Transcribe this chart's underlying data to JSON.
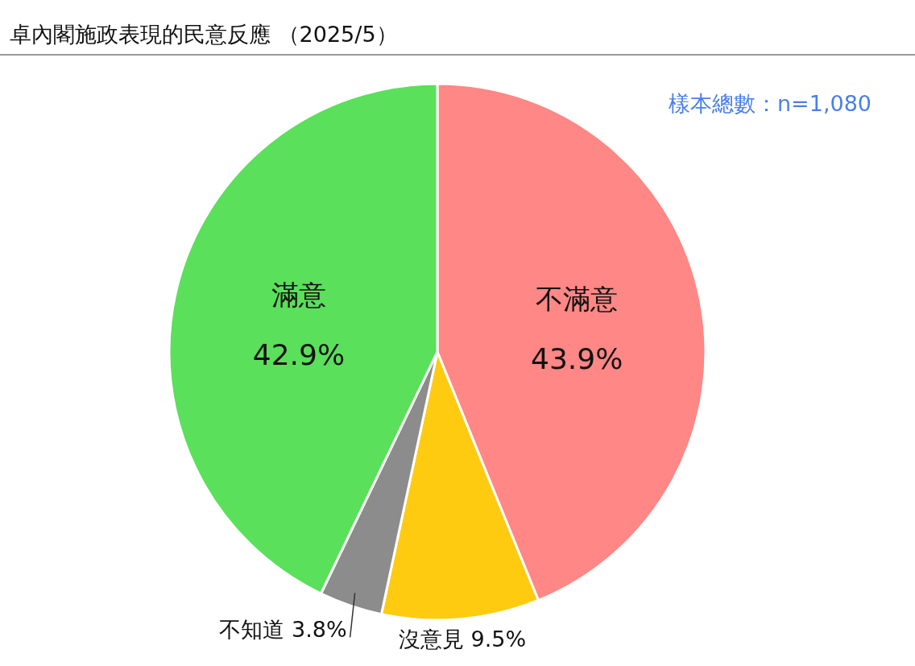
{
  "chart_data": {
    "type": "pie",
    "title": "卓內閣施政表現的民意反應 （2025/5）",
    "annotations": [
      "樣本總數：n=1,080"
    ],
    "categories": [
      "不滿意",
      "沒意見",
      "不知道",
      "滿意"
    ],
    "values": [
      43.9,
      9.5,
      3.8,
      42.9
    ],
    "value_labels": [
      "43.9%",
      "9.5%",
      "3.8%",
      "42.9%"
    ],
    "colors": [
      "#ff8785",
      "#fecb10",
      "#8c8c8c",
      "#5ae05a"
    ]
  }
}
